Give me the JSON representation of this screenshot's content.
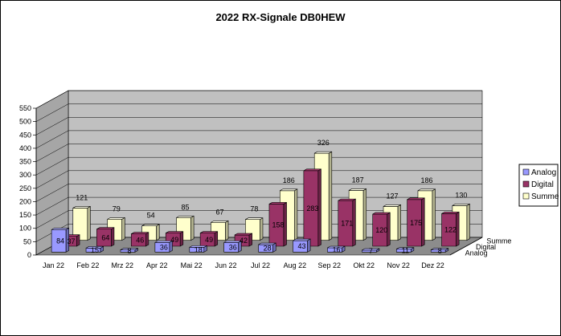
{
  "chart_data": {
    "type": "bar",
    "subtype": "3d-clustered-depth",
    "title": "2022 RX-Signale DB0HEW",
    "xlabel": "",
    "ylabel": "",
    "ylim": [
      0,
      550
    ],
    "yticks": [
      0,
      50,
      100,
      150,
      200,
      250,
      300,
      350,
      400,
      450,
      500,
      550
    ],
    "grid": true,
    "legend": "right",
    "categories": [
      "Jan 22",
      "Feb 22",
      "Mrz 22",
      "Apr 22",
      "Mai 22",
      "Jun 22",
      "Jul 22",
      "Aug 22",
      "Sep 22",
      "Okt 22",
      "Nov 22",
      "Dez 22"
    ],
    "series": [
      {
        "name": "Analog",
        "values": [
          84,
          15,
          8,
          36,
          18,
          36,
          28,
          43,
          16,
          7,
          11,
          8
        ],
        "color": "#9999ff"
      },
      {
        "name": "Digital",
        "values": [
          37,
          64,
          46,
          49,
          49,
          42,
          158,
          283,
          171,
          120,
          175,
          122
        ],
        "color": "#993366"
      },
      {
        "name": "Summe",
        "values": [
          121,
          79,
          54,
          85,
          67,
          78,
          186,
          326,
          187,
          127,
          186,
          130
        ],
        "color": "#ffffcc"
      }
    ]
  }
}
